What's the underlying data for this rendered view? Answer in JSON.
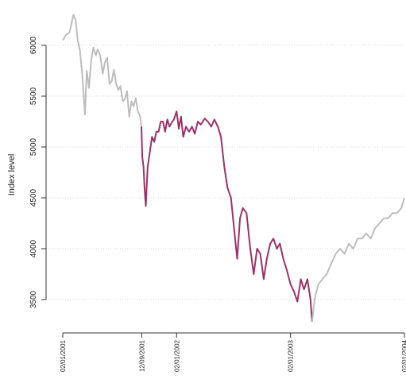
{
  "chart_data": {
    "type": "line",
    "title": "",
    "xlabel": "",
    "ylabel": "Index level",
    "ylim": [
      3300,
      6340
    ],
    "y_ticks": [
      3500,
      4000,
      4500,
      5000,
      5500,
      6000
    ],
    "x_ticks": [
      "02/01/2001",
      "12/09/2001",
      "02/01/2002",
      "02/01/2003",
      "02/01/2004"
    ],
    "grid": "horizontal dotted",
    "colors": {
      "gray_series": "#bdbdbd",
      "highlight_series": "#993366",
      "grid": "#d9d9d9",
      "axis": "#333333"
    },
    "series": [
      {
        "color": "#bdbdbd",
        "x": [
          "2001-01-02",
          "2001-01-12",
          "2001-01-24",
          "2001-02-05",
          "2001-02-12",
          "2001-02-19",
          "2001-02-26",
          "2001-03-06",
          "2001-03-14",
          "2001-03-20",
          "2001-03-27",
          "2001-04-03",
          "2001-04-10",
          "2001-04-18",
          "2001-04-24",
          "2001-05-02",
          "2001-05-10",
          "2001-05-17",
          "2001-05-24",
          "2001-06-01",
          "2001-06-08",
          "2001-06-15",
          "2001-06-22",
          "2001-06-29",
          "2001-07-06",
          "2001-07-13",
          "2001-07-20",
          "2001-07-27",
          "2001-08-03",
          "2001-08-10",
          "2001-08-17",
          "2001-08-24",
          "2001-08-31",
          "2001-09-07",
          "2001-09-11"
        ],
        "values": [
          6050,
          6100,
          6130,
          6300,
          6250,
          6050,
          5950,
          5700,
          5320,
          5750,
          5580,
          5850,
          5980,
          5900,
          5960,
          5900,
          5720,
          5830,
          5880,
          5620,
          5650,
          5760,
          5620,
          5560,
          5600,
          5450,
          5470,
          5550,
          5300,
          5450,
          5400,
          5480,
          5350,
          5300,
          5200
        ]
      },
      {
        "color": "#993366",
        "x": [
          "2001-09-11",
          "2001-09-14",
          "2001-09-18",
          "2001-09-21",
          "2001-09-25",
          "2001-10-01",
          "2001-10-08",
          "2001-10-15",
          "2001-10-22",
          "2001-10-29",
          "2001-11-05",
          "2001-11-12",
          "2001-11-19",
          "2001-11-26",
          "2001-12-03",
          "2001-12-10",
          "2001-12-17",
          "2001-12-24",
          "2002-01-02",
          "2002-01-09",
          "2002-01-16",
          "2002-01-23",
          "2002-02-01",
          "2002-02-11",
          "2002-02-20",
          "2002-03-01",
          "2002-03-11",
          "2002-03-20",
          "2002-04-02",
          "2002-04-12",
          "2002-04-23",
          "2002-05-03",
          "2002-05-14",
          "2002-05-24",
          "2002-06-04",
          "2002-06-14",
          "2002-06-25",
          "2002-07-05",
          "2002-07-15",
          "2002-07-24",
          "2002-08-02",
          "2002-08-14",
          "2002-08-26",
          "2002-09-06",
          "2002-09-17",
          "2002-09-27",
          "2002-10-08",
          "2002-10-18",
          "2002-10-29",
          "2002-11-08",
          "2002-11-19",
          "2002-11-29",
          "2002-12-10",
          "2002-12-20",
          "2003-01-02",
          "2003-01-13",
          "2003-01-24",
          "2003-02-04",
          "2003-02-14",
          "2003-02-25",
          "2003-03-07",
          "2003-03-12"
        ],
        "values": [
          5200,
          4900,
          4800,
          4600,
          4420,
          4800,
          4950,
          5100,
          5050,
          5150,
          5150,
          5250,
          5250,
          5150,
          5270,
          5200,
          5240,
          5270,
          5350,
          5180,
          5300,
          5100,
          5200,
          5150,
          5200,
          5130,
          5250,
          5220,
          5280,
          5250,
          5200,
          5270,
          5200,
          5100,
          4800,
          4600,
          4500,
          4200,
          3900,
          4300,
          4400,
          4350,
          4000,
          3750,
          4000,
          3950,
          3700,
          3900,
          4050,
          4100,
          4000,
          4050,
          3900,
          3800,
          3650,
          3580,
          3480,
          3700,
          3600,
          3700,
          3500,
          3280
        ]
      },
      {
        "color": "#bdbdbd",
        "x": [
          "2003-03-12",
          "2003-03-20",
          "2003-04-01",
          "2003-04-14",
          "2003-04-28",
          "2003-05-12",
          "2003-05-27",
          "2003-06-10",
          "2003-06-24",
          "2003-07-08",
          "2003-07-22",
          "2003-08-05",
          "2003-08-19",
          "2003-09-02",
          "2003-09-16",
          "2003-09-30",
          "2003-10-14",
          "2003-10-28",
          "2003-11-11",
          "2003-11-25",
          "2003-12-09",
          "2003-12-23",
          "2004-01-02"
        ],
        "values": [
          3280,
          3500,
          3650,
          3700,
          3750,
          3850,
          3950,
          4000,
          3950,
          4050,
          4000,
          4100,
          4100,
          4150,
          4100,
          4200,
          4250,
          4300,
          4300,
          4350,
          4350,
          4400,
          4500
        ]
      }
    ]
  }
}
